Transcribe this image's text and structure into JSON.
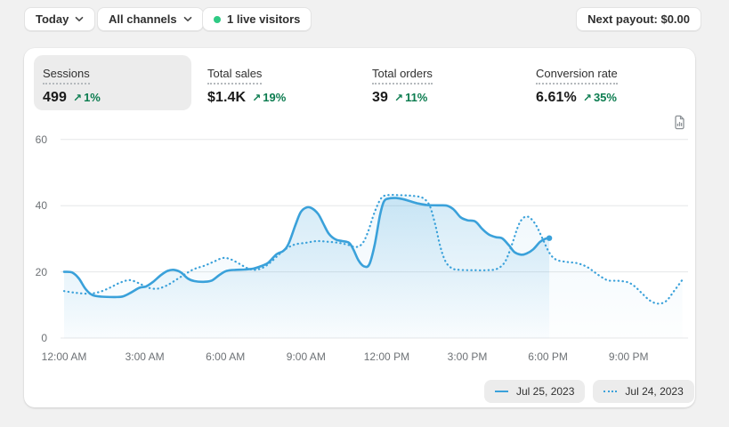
{
  "topbar": {
    "date_button": "Today",
    "channel_button": "All channels",
    "live_visitors": "1 live visitors",
    "next_payout": "Next payout: $0.00"
  },
  "icons": {
    "trend_up_arrow": "↗"
  },
  "metrics": [
    {
      "label": "Sessions",
      "value": "499",
      "delta": "1%",
      "direction": "up",
      "selected": true
    },
    {
      "label": "Total sales",
      "value": "$1.4K",
      "delta": "19%",
      "direction": "up",
      "selected": false
    },
    {
      "label": "Total orders",
      "value": "39",
      "delta": "11%",
      "direction": "up",
      "selected": false
    },
    {
      "label": "Conversion rate",
      "value": "6.61%",
      "delta": "35%",
      "direction": "up",
      "selected": false
    }
  ],
  "chart_data": {
    "type": "line",
    "metric": "Sessions",
    "ylim": [
      0,
      60
    ],
    "yticks": [
      0,
      20,
      40,
      60
    ],
    "xtick_hours": [
      0,
      3,
      6,
      9,
      12,
      15,
      18,
      21
    ],
    "xtick_labels": [
      "12:00 AM",
      "3:00 AM",
      "6:00 AM",
      "9:00 AM",
      "12:00 PM",
      "3:00 PM",
      "6:00 PM",
      "9:00 PM"
    ],
    "x_domain_hours": [
      0,
      24
    ],
    "grid": "horizontal",
    "legend_position": "bottom-right",
    "series": [
      {
        "name": "Jul 25, 2023",
        "style": "solid",
        "points": [
          [
            0,
            20
          ],
          [
            0.3,
            19.8
          ],
          [
            0.55,
            18
          ],
          [
            0.8,
            14.8
          ],
          [
            1.05,
            13
          ],
          [
            1.4,
            12.5
          ],
          [
            1.9,
            12.4
          ],
          [
            2.2,
            12.6
          ],
          [
            2.5,
            13.8
          ],
          [
            2.8,
            15.2
          ],
          [
            3.05,
            15.6
          ],
          [
            3.3,
            16.9
          ],
          [
            3.6,
            19
          ],
          [
            3.85,
            20.3
          ],
          [
            4.1,
            20.6
          ],
          [
            4.35,
            19.8
          ],
          [
            4.6,
            18
          ],
          [
            4.85,
            17.2
          ],
          [
            5.2,
            17
          ],
          [
            5.5,
            17.4
          ],
          [
            5.8,
            19.2
          ],
          [
            6.05,
            20.3
          ],
          [
            6.35,
            20.6
          ],
          [
            6.7,
            20.7
          ],
          [
            7.05,
            21
          ],
          [
            7.35,
            21.8
          ],
          [
            7.6,
            22.8
          ],
          [
            7.9,
            25.3
          ],
          [
            8.15,
            26.3
          ],
          [
            8.35,
            28.5
          ],
          [
            8.6,
            34
          ],
          [
            8.8,
            38
          ],
          [
            9,
            39.4
          ],
          [
            9.2,
            39.3
          ],
          [
            9.45,
            37.5
          ],
          [
            9.65,
            34.5
          ],
          [
            9.85,
            31.5
          ],
          [
            10.1,
            29.8
          ],
          [
            10.35,
            29.3
          ],
          [
            10.6,
            28.8
          ],
          [
            10.75,
            27
          ],
          [
            10.95,
            23.5
          ],
          [
            11.15,
            21.7
          ],
          [
            11.35,
            22.2
          ],
          [
            11.55,
            28
          ],
          [
            11.75,
            37
          ],
          [
            11.9,
            41.3
          ],
          [
            12.1,
            42.2
          ],
          [
            12.35,
            42.3
          ],
          [
            12.6,
            42
          ],
          [
            12.85,
            41.4
          ],
          [
            13.15,
            40.7
          ],
          [
            13.5,
            40.2
          ],
          [
            13.9,
            40.1
          ],
          [
            14.25,
            40
          ],
          [
            14.5,
            38.8
          ],
          [
            14.75,
            36.5
          ],
          [
            15,
            35.6
          ],
          [
            15.3,
            35.2
          ],
          [
            15.55,
            33
          ],
          [
            15.8,
            31.3
          ],
          [
            16.05,
            30.5
          ],
          [
            16.3,
            30.1
          ],
          [
            16.55,
            28
          ],
          [
            16.75,
            26
          ],
          [
            17,
            25.2
          ],
          [
            17.2,
            25.5
          ],
          [
            17.45,
            26.8
          ],
          [
            17.7,
            29
          ],
          [
            17.9,
            30
          ],
          [
            18.05,
            30.2
          ]
        ]
      },
      {
        "name": "Jul 24, 2023",
        "style": "dotted",
        "points": [
          [
            0,
            14.2
          ],
          [
            0.4,
            13.7
          ],
          [
            0.9,
            13.4
          ],
          [
            1.3,
            13.9
          ],
          [
            1.7,
            15.2
          ],
          [
            2.1,
            16.8
          ],
          [
            2.45,
            17.5
          ],
          [
            2.8,
            16.5
          ],
          [
            3.1,
            15.3
          ],
          [
            3.45,
            14.9
          ],
          [
            3.8,
            15.8
          ],
          [
            4.15,
            17.5
          ],
          [
            4.5,
            19.3
          ],
          [
            4.85,
            20.9
          ],
          [
            5.2,
            21.8
          ],
          [
            5.55,
            23
          ],
          [
            5.9,
            24.2
          ],
          [
            6.2,
            23.8
          ],
          [
            6.55,
            22.3
          ],
          [
            6.85,
            21
          ],
          [
            7.1,
            20.6
          ],
          [
            7.4,
            21.3
          ],
          [
            7.7,
            23
          ],
          [
            8,
            25.3
          ],
          [
            8.3,
            27.2
          ],
          [
            8.6,
            28.3
          ],
          [
            9,
            28.8
          ],
          [
            9.4,
            29.3
          ],
          [
            9.8,
            29.1
          ],
          [
            10.2,
            28.8
          ],
          [
            10.55,
            28.2
          ],
          [
            10.85,
            27.5
          ],
          [
            11.1,
            28.6
          ],
          [
            11.3,
            32
          ],
          [
            11.55,
            38
          ],
          [
            11.8,
            42.3
          ],
          [
            12.05,
            43.2
          ],
          [
            12.4,
            43.2
          ],
          [
            12.75,
            43.1
          ],
          [
            13.05,
            42.9
          ],
          [
            13.35,
            42.3
          ],
          [
            13.6,
            40
          ],
          [
            13.8,
            34.5
          ],
          [
            14,
            27.5
          ],
          [
            14.2,
            23
          ],
          [
            14.45,
            21
          ],
          [
            14.75,
            20.6
          ],
          [
            15.2,
            20.5
          ],
          [
            15.7,
            20.5
          ],
          [
            16.1,
            20.9
          ],
          [
            16.4,
            23
          ],
          [
            16.65,
            28
          ],
          [
            16.9,
            34
          ],
          [
            17.1,
            36.4
          ],
          [
            17.3,
            36.5
          ],
          [
            17.55,
            34.2
          ],
          [
            17.8,
            30
          ],
          [
            18.05,
            25.8
          ],
          [
            18.3,
            23.7
          ],
          [
            18.7,
            23
          ],
          [
            19.1,
            22.6
          ],
          [
            19.45,
            21.5
          ],
          [
            19.75,
            19.8
          ],
          [
            20,
            18.4
          ],
          [
            20.25,
            17.4
          ],
          [
            20.6,
            17.3
          ],
          [
            20.95,
            16.9
          ],
          [
            21.2,
            15.8
          ],
          [
            21.5,
            13.5
          ],
          [
            21.8,
            11.3
          ],
          [
            22.1,
            10.4
          ],
          [
            22.4,
            11.2
          ],
          [
            22.7,
            14.3
          ],
          [
            23,
            17.6
          ]
        ]
      }
    ]
  },
  "colors": {
    "page_background": "#f1f1f1",
    "card_background": "#ffffff",
    "line_blue": "#3aa1da",
    "grid_gray": "#e5e7e8",
    "axis_text": "#6d7175",
    "delta_green": "#0b7c4f",
    "live_dot_green": "#2fca84",
    "selected_tab_background": "#ececec",
    "legend_pill_background": "#ececec"
  }
}
